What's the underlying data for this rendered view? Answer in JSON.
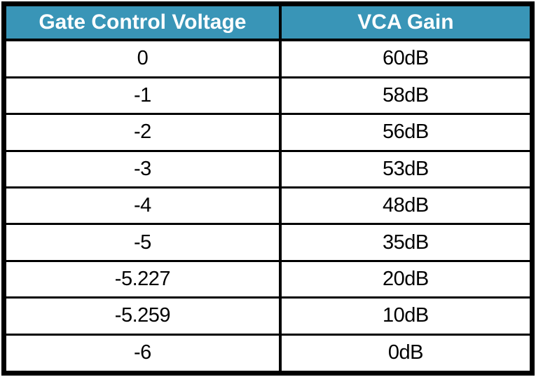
{
  "table": {
    "headers": [
      "Gate Control Voltage",
      "VCA Gain"
    ],
    "rows": [
      {
        "voltage": "0",
        "gain": "60dB"
      },
      {
        "voltage": "-1",
        "gain": "58dB"
      },
      {
        "voltage": "-2",
        "gain": "56dB"
      },
      {
        "voltage": "-3",
        "gain": "53dB"
      },
      {
        "voltage": "-4",
        "gain": "48dB"
      },
      {
        "voltage": "-5",
        "gain": "35dB"
      },
      {
        "voltage": "-5.227",
        "gain": "20dB"
      },
      {
        "voltage": "-5.259",
        "gain": "10dB"
      },
      {
        "voltage": "-6",
        "gain": "0dB"
      }
    ]
  },
  "colors": {
    "header_bg": "#3995b7",
    "header_text": "#ffffff",
    "border": "#000000",
    "row_bg": "#ffffff",
    "row_text": "#000000"
  },
  "chart_data": {
    "type": "table",
    "title": "",
    "columns": [
      "Gate Control Voltage",
      "VCA Gain"
    ],
    "rows": [
      [
        "0",
        "60dB"
      ],
      [
        "-1",
        "58dB"
      ],
      [
        "-2",
        "56dB"
      ],
      [
        "-3",
        "53dB"
      ],
      [
        "-4",
        "48dB"
      ],
      [
        "-5",
        "35dB"
      ],
      [
        "-5.227",
        "20dB"
      ],
      [
        "-5.259",
        "10dB"
      ],
      [
        "-6",
        "0dB"
      ]
    ],
    "gate_control_voltage": [
      0,
      -1,
      -2,
      -3,
      -4,
      -5,
      -5.227,
      -5.259,
      -6
    ],
    "vca_gain_db": [
      60,
      58,
      56,
      53,
      48,
      35,
      20,
      10,
      0
    ]
  }
}
